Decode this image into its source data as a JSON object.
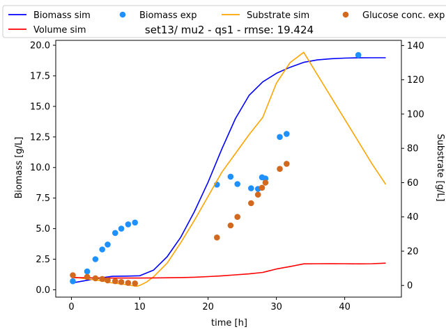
{
  "chart_data": {
    "type": "line",
    "title": "set13/ mu2 - qs1 - rmse: 19.424",
    "xlabel": "time [h]",
    "ylabel_left": "Biomass [g/L]",
    "ylabel_right": "Substrate [g/L]",
    "xlim": [
      -2.3,
      48.3
    ],
    "ylim_left": [
      -0.6,
      20.4
    ],
    "ylim_right": [
      -6.8,
      143
    ],
    "x_ticks": [
      0,
      10,
      20,
      30,
      40
    ],
    "y_left_ticks": [
      0.0,
      2.5,
      5.0,
      7.5,
      10.0,
      12.5,
      15.0,
      17.5,
      20.0
    ],
    "y_left_tick_labels": [
      "0.0",
      "2.5",
      "5.0",
      "7.5",
      "10.0",
      "12.5",
      "15.0",
      "17.5",
      "20.0"
    ],
    "y_right_ticks": [
      0,
      20,
      40,
      60,
      80,
      100,
      120,
      140
    ],
    "grid": false,
    "legend_placement": "top, outside plot",
    "series": [
      {
        "name": "Biomass sim",
        "kind": "line",
        "axis": "left",
        "color": "#0000ff",
        "x": [
          0,
          2,
          4,
          6,
          8,
          10,
          12,
          14,
          16,
          18,
          20,
          22,
          24,
          26,
          28,
          30,
          32,
          34,
          36,
          38,
          40,
          42,
          44,
          46
        ],
        "y": [
          0.55,
          0.75,
          0.95,
          1.1,
          1.12,
          1.15,
          1.6,
          2.7,
          4.3,
          6.4,
          8.8,
          11.5,
          14.0,
          15.9,
          17.0,
          17.7,
          18.2,
          18.6,
          18.8,
          18.9,
          18.95,
          18.97,
          18.98,
          18.98
        ]
      },
      {
        "name": "Biomass exp",
        "kind": "scatter",
        "axis": "left",
        "color": "#1e90ff",
        "x": [
          0.2,
          2.3,
          3.5,
          4.5,
          5.3,
          6.4,
          7.3,
          8.3,
          9.3,
          21.3,
          23.3,
          24.3,
          26.3,
          27.3,
          27.9,
          28.4,
          30.5,
          31.5,
          42.0
        ],
        "y": [
          0.7,
          1.5,
          2.5,
          3.3,
          3.7,
          4.65,
          5.0,
          5.35,
          5.5,
          8.6,
          9.25,
          8.65,
          8.3,
          8.25,
          9.2,
          9.1,
          12.5,
          12.75,
          19.2
        ]
      },
      {
        "name": "Substrate sim",
        "kind": "line",
        "axis": "right",
        "color": "#ffa500",
        "x": [
          0,
          2,
          4,
          6,
          8,
          9.5,
          10,
          11,
          12,
          14,
          16,
          18,
          20,
          22,
          24,
          26,
          28,
          29,
          30,
          32,
          34,
          36,
          38,
          40,
          42,
          44,
          46
        ],
        "y": [
          5,
          4,
          3,
          1.5,
          0.5,
          -0.5,
          0,
          2,
          5,
          13,
          25,
          38,
          52,
          66,
          77,
          88,
          98,
          108,
          118,
          130,
          136,
          123,
          110,
          97,
          84,
          71,
          59
        ]
      },
      {
        "name": "Volume sim",
        "kind": "line",
        "axis": "left",
        "color": "#ff0000",
        "x": [
          0,
          2,
          4,
          6,
          8,
          10,
          12,
          14,
          16,
          18,
          20,
          22,
          24,
          26,
          28,
          30,
          32,
          34,
          36,
          38,
          40,
          42,
          44,
          46
        ],
        "y": [
          1.0,
          0.98,
          0.97,
          0.96,
          0.96,
          0.96,
          0.97,
          0.98,
          1.0,
          1.03,
          1.08,
          1.14,
          1.22,
          1.3,
          1.42,
          1.7,
          1.9,
          2.12,
          2.13,
          2.14,
          2.13,
          2.12,
          2.13,
          2.18
        ]
      },
      {
        "name": "Glucose conc. exp",
        "kind": "scatter",
        "axis": "right",
        "color": "#d2691e",
        "x": [
          0.2,
          2.3,
          3.5,
          4.5,
          5.3,
          6.4,
          7.3,
          8.3,
          9.3,
          21.3,
          23.3,
          24.3,
          26.3,
          27.3,
          27.9,
          28.4,
          30.5,
          31.5
        ],
        "y": [
          6,
          5,
          4.2,
          3.8,
          3.0,
          2.5,
          2.0,
          1.5,
          1.2,
          28,
          35,
          40,
          48,
          53,
          57,
          60,
          68,
          71
        ]
      }
    ],
    "legend_order": [
      "Biomass sim",
      "Biomass exp",
      "Substrate sim",
      "Glucose conc. exp",
      "Volume sim"
    ]
  }
}
